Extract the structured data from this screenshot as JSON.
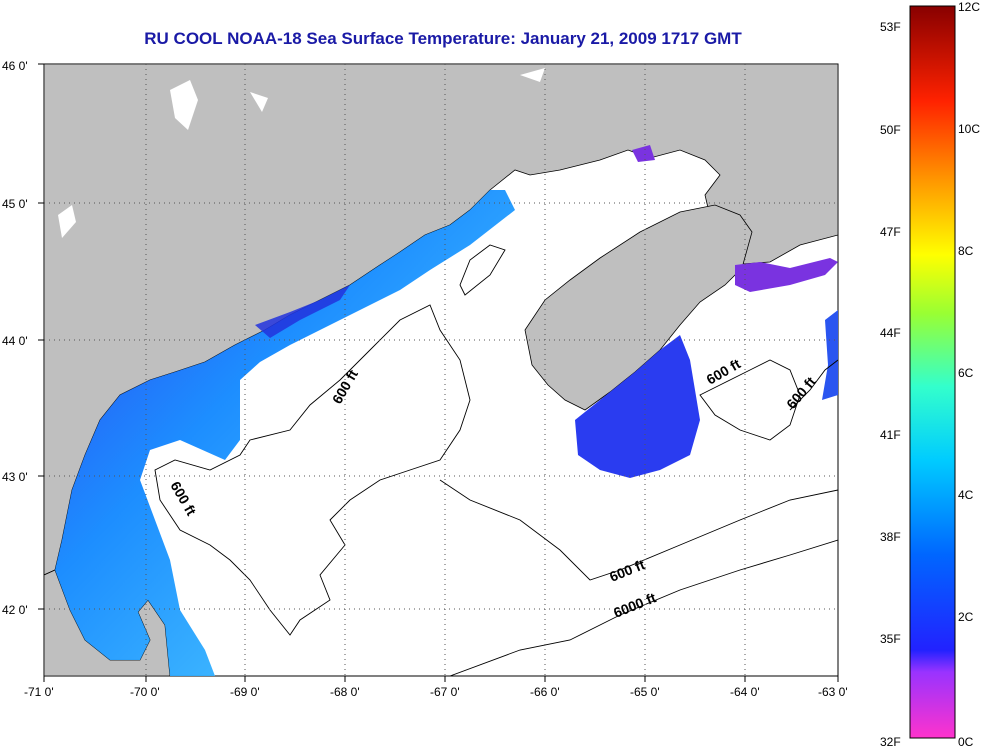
{
  "title": "RU COOL  NOAA-18  Sea Surface Temperature:  January 21, 2009 1717 GMT",
  "colors": {
    "land": "#bfbfbf",
    "water_nodata": "#ffffff",
    "title": "#1a1aa6",
    "contour": "#000000",
    "grid": "#555555"
  },
  "map": {
    "lon_range": [
      -71,
      -63
    ],
    "lat_range": [
      41.5,
      46
    ],
    "x_ticks": [
      "-71 0'",
      "-70 0'",
      "-69 0'",
      "-68 0'",
      "-67 0'",
      "-66 0'",
      "-65 0'",
      "-64 0'",
      "-63 0'"
    ],
    "y_ticks": [
      "46 0'",
      "45 0'",
      "44 0'",
      "43 0'",
      "42 0'"
    ],
    "contour_labels": [
      "600 ft",
      "600 ft",
      "600 ft",
      "600 ft",
      "600 ft",
      "6000 ft"
    ]
  },
  "colorbar": {
    "f_labels": [
      "53F",
      "50F",
      "47F",
      "44F",
      "41F",
      "38F",
      "35F",
      "32F"
    ],
    "c_labels": [
      "12C",
      "10C",
      "8C",
      "6C",
      "4C",
      "2C",
      "0C"
    ]
  }
}
